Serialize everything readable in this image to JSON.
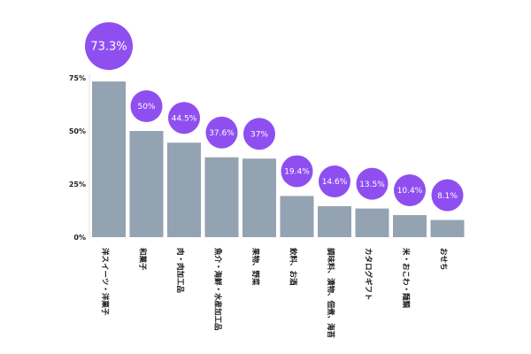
{
  "chart_data": {
    "type": "bar",
    "categories": [
      "洋スイーツ・洋菓子",
      "和菓子",
      "肉・肉加工品",
      "魚介・海鮮・水産加工品",
      "果物、野菜",
      "飲料、お酒",
      "調味料、漬物、佃煮、海苔",
      "カタログギフト",
      "米・おこわ・麺類",
      "おせち"
    ],
    "values": [
      73.3,
      50,
      44.5,
      37.6,
      37,
      19.4,
      14.6,
      13.5,
      10.4,
      8.1
    ],
    "data_labels": [
      "73.3%",
      "50%",
      "44.5%",
      "37.6%",
      "37%",
      "19.4%",
      "14.6%",
      "13.5%",
      "10.4%",
      "8.1%"
    ],
    "yticks": [
      {
        "value": 0,
        "label": "0%"
      },
      {
        "value": 25,
        "label": "25%"
      },
      {
        "value": 50,
        "label": "50%"
      },
      {
        "value": 75,
        "label": "75%"
      }
    ],
    "ylim": [
      0,
      75
    ],
    "grid": false,
    "legend": "none",
    "colors": {
      "bar": "#94a3b1",
      "bubble": "#8f4ff0",
      "axis": "#cccccc"
    }
  }
}
